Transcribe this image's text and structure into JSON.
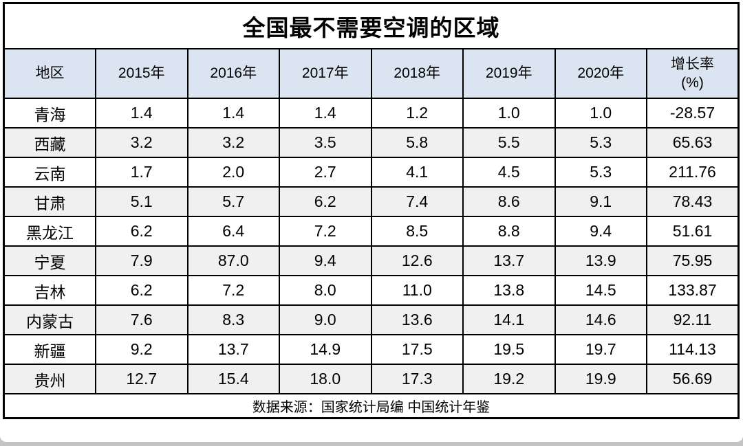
{
  "colors": {
    "header_bg": "#dbe5f1",
    "row_alt_bg": "#f0f0f0",
    "border": "#000000",
    "text": "#000000",
    "page_strip": "#c4c4c4"
  },
  "table": {
    "title": "全国最不需要空调的区域",
    "columns": [
      "地区",
      "2015年",
      "2016年",
      "2017年",
      "2018年",
      "2019年",
      "2020年",
      "增长率\n(%)"
    ],
    "rows": [
      {
        "region": "青海",
        "values": [
          "1.4",
          "1.4",
          "1.4",
          "1.2",
          "1.0",
          "1.0"
        ],
        "growth": "-28.57"
      },
      {
        "region": "西藏",
        "values": [
          "3.2",
          "3.2",
          "3.5",
          "5.8",
          "5.5",
          "5.3"
        ],
        "growth": "65.63"
      },
      {
        "region": "云南",
        "values": [
          "1.7",
          "2.0",
          "2.7",
          "4.1",
          "4.5",
          "5.3"
        ],
        "growth": "211.76"
      },
      {
        "region": "甘肃",
        "values": [
          "5.1",
          "5.7",
          "6.2",
          "7.4",
          "8.6",
          "9.1"
        ],
        "growth": "78.43"
      },
      {
        "region": "黑龙江",
        "values": [
          "6.2",
          "6.4",
          "7.2",
          "8.5",
          "8.8",
          "9.4"
        ],
        "growth": "51.61"
      },
      {
        "region": "宁夏",
        "values": [
          "7.9",
          "87.0",
          "9.4",
          "12.6",
          "13.7",
          "13.9"
        ],
        "growth": "75.95"
      },
      {
        "region": "吉林",
        "values": [
          "6.2",
          "7.2",
          "8.0",
          "11.0",
          "13.8",
          "14.5"
        ],
        "growth": "133.87"
      },
      {
        "region": "内蒙古",
        "values": [
          "7.6",
          "8.3",
          "9.0",
          "13.6",
          "14.1",
          "14.6"
        ],
        "growth": "92.11"
      },
      {
        "region": "新疆",
        "values": [
          "9.2",
          "13.7",
          "14.9",
          "17.5",
          "19.5",
          "19.7"
        ],
        "growth": "114.13"
      },
      {
        "region": "贵州",
        "values": [
          "12.7",
          "15.4",
          "18.0",
          "17.3",
          "19.2",
          "19.9"
        ],
        "growth": "56.69"
      }
    ],
    "source": "数据来源：国家统计局编 中国统计年鉴"
  },
  "chart_data": {
    "type": "table",
    "title": "全国最不需要空调的区域",
    "columns": [
      "地区",
      "2015年",
      "2016年",
      "2017年",
      "2018年",
      "2019年",
      "2020年",
      "增长率(%)"
    ],
    "rows": [
      [
        "青海",
        1.4,
        1.4,
        1.4,
        1.2,
        1.0,
        1.0,
        -28.57
      ],
      [
        "西藏",
        3.2,
        3.2,
        3.5,
        5.8,
        5.5,
        5.3,
        65.63
      ],
      [
        "云南",
        1.7,
        2.0,
        2.7,
        4.1,
        4.5,
        5.3,
        211.76
      ],
      [
        "甘肃",
        5.1,
        5.7,
        6.2,
        7.4,
        8.6,
        9.1,
        78.43
      ],
      [
        "黑龙江",
        6.2,
        6.4,
        7.2,
        8.5,
        8.8,
        9.4,
        51.61
      ],
      [
        "宁夏",
        7.9,
        87.0,
        9.4,
        12.6,
        13.7,
        13.9,
        75.95
      ],
      [
        "吉林",
        6.2,
        7.2,
        8.0,
        11.0,
        13.8,
        14.5,
        133.87
      ],
      [
        "内蒙古",
        7.6,
        8.3,
        9.0,
        13.6,
        14.1,
        14.6,
        92.11
      ],
      [
        "新疆",
        9.2,
        13.7,
        14.9,
        17.5,
        19.5,
        19.7,
        114.13
      ],
      [
        "贵州",
        12.7,
        15.4,
        18.0,
        17.3,
        19.2,
        19.9,
        56.69
      ]
    ],
    "source": "数据来源：国家统计局编 中国统计年鉴",
    "layout": {
      "header_fill": "#dbe5f1",
      "alt_row_fill": "#f0f0f0",
      "grid": "black solid"
    }
  }
}
